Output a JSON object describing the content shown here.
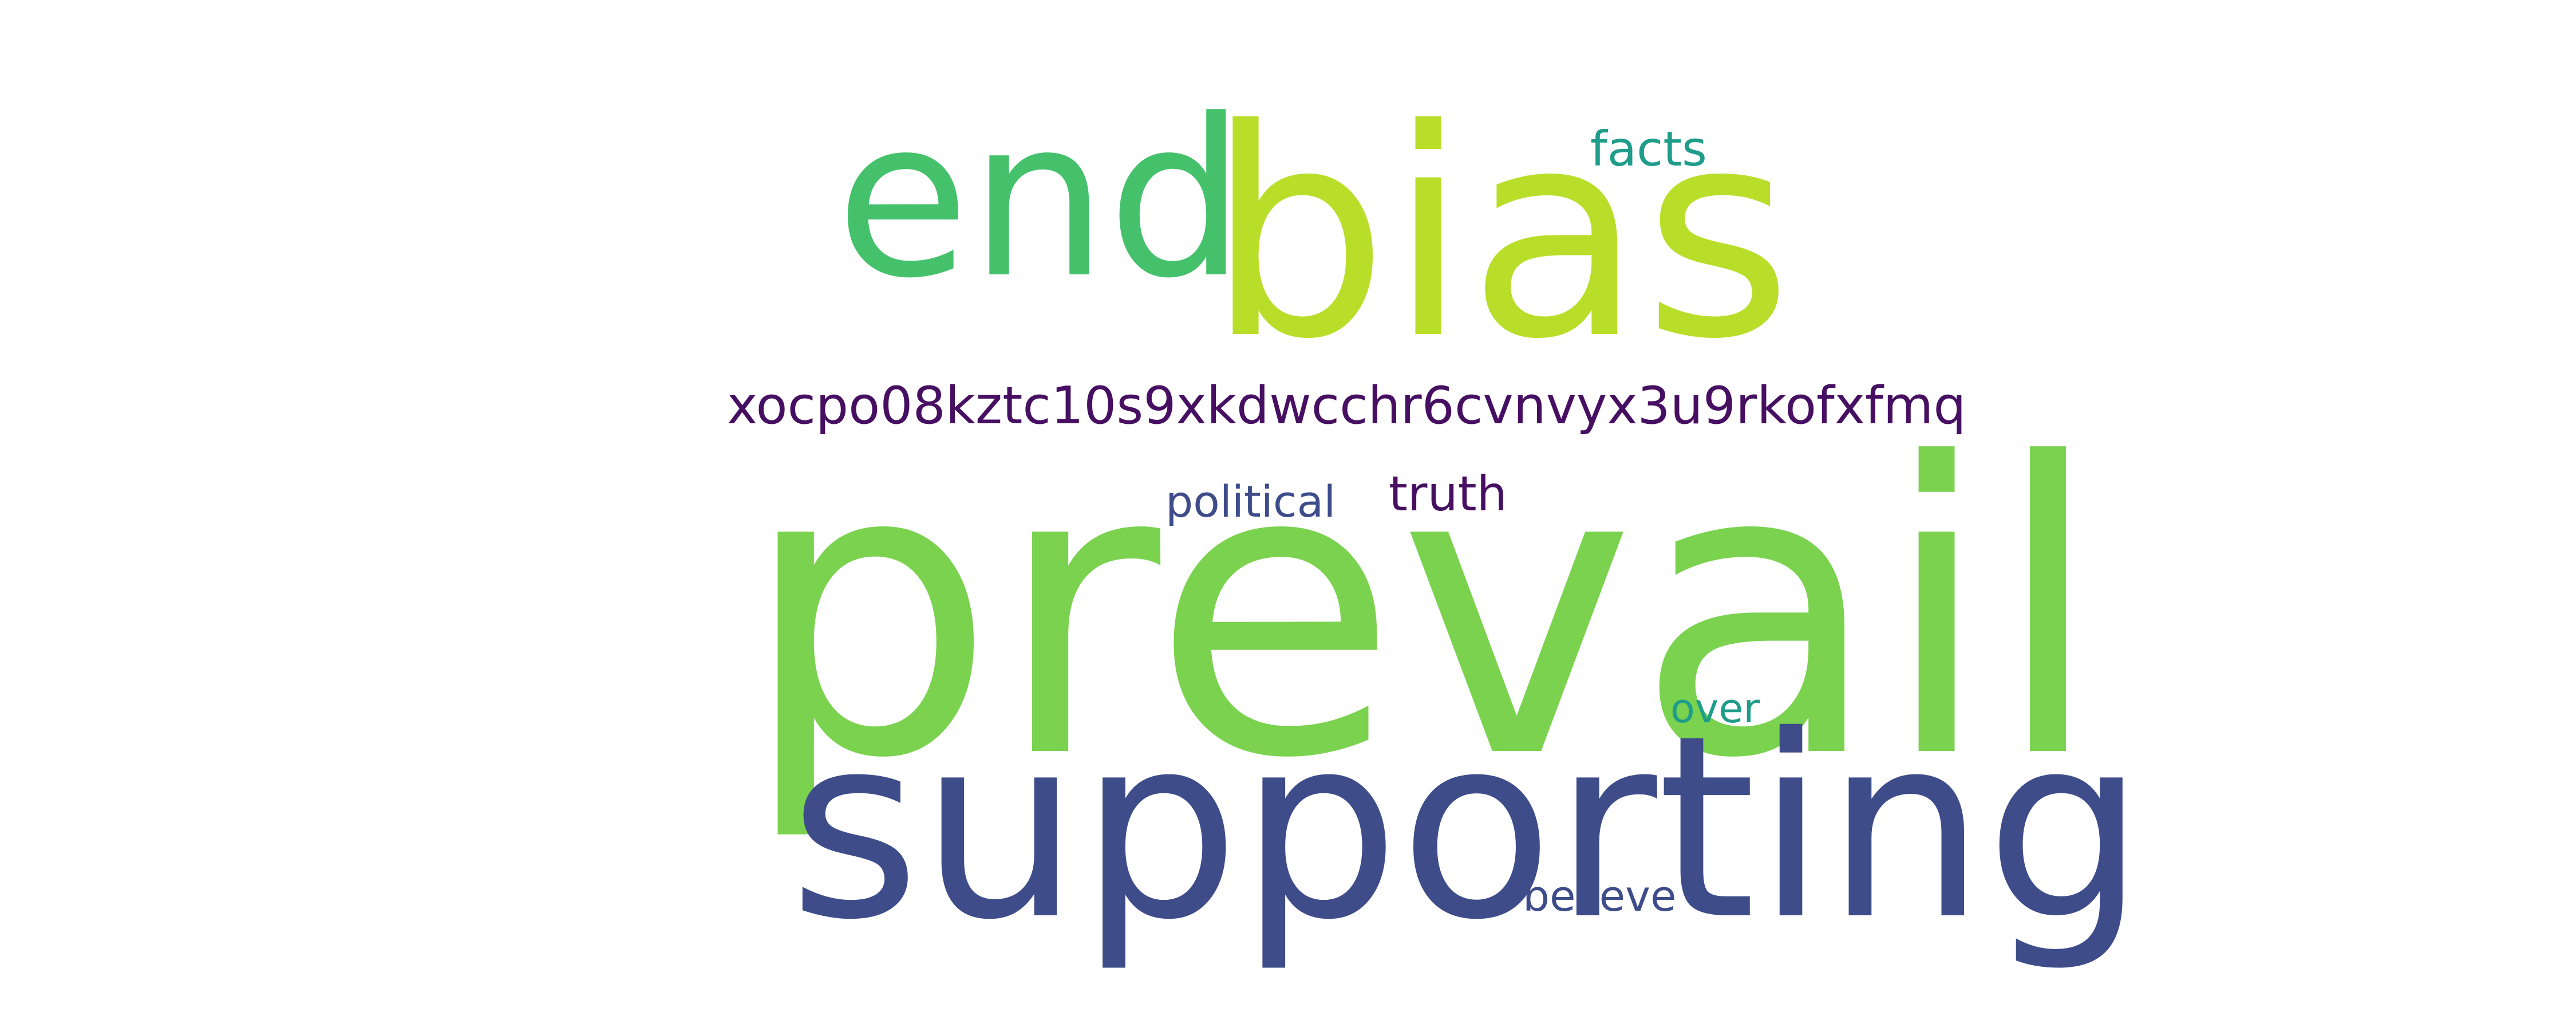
{
  "words": [
    {
      "key": "end",
      "text": "end",
      "color": "#45c16c"
    },
    {
      "key": "bias",
      "text": "bias",
      "color": "#b9de2a"
    },
    {
      "key": "facts",
      "text": "facts",
      "color": "#1f9c8a"
    },
    {
      "key": "code",
      "text": "xocpo08kztc10s9xkdwcchr6cvnvyx3u9rkofxfmq",
      "color": "#470f62"
    },
    {
      "key": "political",
      "text": "political",
      "color": "#3e4c8a"
    },
    {
      "key": "truth",
      "text": "truth",
      "color": "#470f62"
    },
    {
      "key": "prevail",
      "text": "prevail",
      "color": "#7bd24f"
    },
    {
      "key": "over",
      "text": "over",
      "color": "#1f9c8a"
    },
    {
      "key": "supporting",
      "text": "supporting",
      "color": "#3e4c8a"
    },
    {
      "key": "believe",
      "text": "believe",
      "color": "#3e4c8a"
    }
  ],
  "background": "#ffffff"
}
